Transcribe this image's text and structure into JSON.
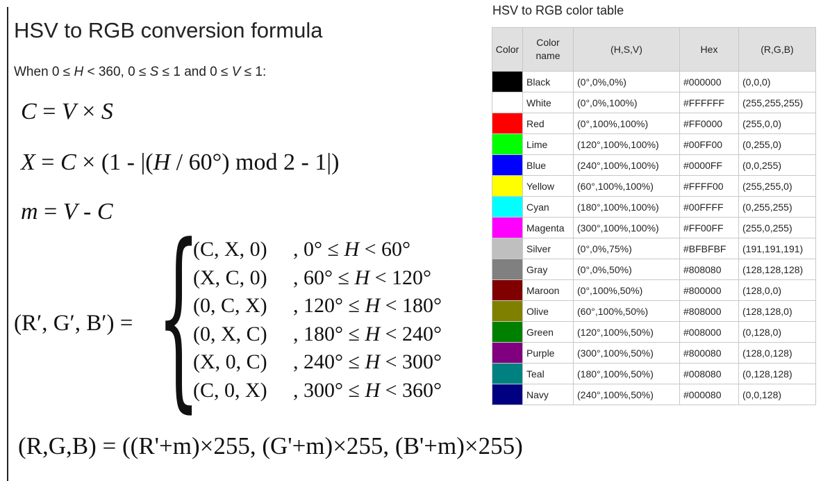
{
  "formula": {
    "title": "HSV to RGB conversion formula",
    "condition": {
      "prefix": "When 0 ≤ ",
      "h": "H",
      "mid1": " < 360, 0 ≤ ",
      "s": "S",
      "mid2": " ≤ 1 and 0 ≤ ",
      "v": "V",
      "suffix": " ≤ 1:"
    },
    "eq_c": {
      "lhs": "C",
      "op": " = ",
      "a": "V",
      "times": " × ",
      "b": "S"
    },
    "eq_x": {
      "lhs": "X",
      "op": " = ",
      "c": "C",
      "rest1": " × (1 - |(",
      "h": "H",
      "rest2": " / 60°) mod 2 - 1|)"
    },
    "eq_m": {
      "lhs": "m",
      "op": " = ",
      "v": "V",
      "minus": " - ",
      "c": "C"
    },
    "piecewise_lhs": "(R′, G′, B′) = ",
    "piecewise_brace": "{",
    "cases": [
      {
        "tuple": "(C, X, 0)",
        "range_pre": ", 0° ≤ ",
        "h": "H",
        "range_post": " < 60°"
      },
      {
        "tuple": "(X, C, 0)",
        "range_pre": ", 60° ≤ ",
        "h": "H",
        "range_post": " < 120°"
      },
      {
        "tuple": "(0, C, X)",
        "range_pre": ", 120° ≤ ",
        "h": "H",
        "range_post": " < 180°"
      },
      {
        "tuple": "(0, X, C)",
        "range_pre": ", 180° ≤ ",
        "h": "H",
        "range_post": " < 240°"
      },
      {
        "tuple": "(X, 0, C)",
        "range_pre": ", 240° ≤ ",
        "h": "H",
        "range_post": " < 300°"
      },
      {
        "tuple": "(C, 0, X)",
        "range_pre": ", 300° ≤ ",
        "h": "H",
        "range_post": " < 360°"
      }
    ],
    "eq_final": "(R,G,B) = ((R'+m)×255, (G'+m)×255, (B'+m)×255)"
  },
  "table": {
    "title": "HSV to RGB color table",
    "headers": {
      "color": "Color",
      "name_line1": "Color",
      "name_line2": "name",
      "hsv": "(H,S,V)",
      "hex": "Hex",
      "rgb": "(R,G,B)"
    },
    "rows": [
      {
        "swatch": "#000000",
        "name": "Black",
        "hsv": "(0°,0%,0%)",
        "hex": "#000000",
        "rgb": "(0,0,0)"
      },
      {
        "swatch": "#FFFFFF",
        "name": "White",
        "hsv": "(0°,0%,100%)",
        "hex": "#FFFFFF",
        "rgb": "(255,255,255)"
      },
      {
        "swatch": "#FF0000",
        "name": "Red",
        "hsv": "(0°,100%,100%)",
        "hex": "#FF0000",
        "rgb": "(255,0,0)"
      },
      {
        "swatch": "#00FF00",
        "name": "Lime",
        "hsv": "(120°,100%,100%)",
        "hex": "#00FF00",
        "rgb": "(0,255,0)"
      },
      {
        "swatch": "#0000FF",
        "name": "Blue",
        "hsv": "(240°,100%,100%)",
        "hex": "#0000FF",
        "rgb": "(0,0,255)"
      },
      {
        "swatch": "#FFFF00",
        "name": "Yellow",
        "hsv": "(60°,100%,100%)",
        "hex": "#FFFF00",
        "rgb": "(255,255,0)"
      },
      {
        "swatch": "#00FFFF",
        "name": "Cyan",
        "hsv": "(180°,100%,100%)",
        "hex": "#00FFFF",
        "rgb": "(0,255,255)"
      },
      {
        "swatch": "#FF00FF",
        "name": "Magenta",
        "hsv": "(300°,100%,100%)",
        "hex": "#FF00FF",
        "rgb": "(255,0,255)"
      },
      {
        "swatch": "#BFBFBF",
        "name": "Silver",
        "hsv": "(0°,0%,75%)",
        "hex": "#BFBFBF",
        "rgb": "(191,191,191)"
      },
      {
        "swatch": "#808080",
        "name": "Gray",
        "hsv": "(0°,0%,50%)",
        "hex": "#808080",
        "rgb": "(128,128,128)"
      },
      {
        "swatch": "#800000",
        "name": "Maroon",
        "hsv": "(0°,100%,50%)",
        "hex": "#800000",
        "rgb": "(128,0,0)"
      },
      {
        "swatch": "#808000",
        "name": "Olive",
        "hsv": "(60°,100%,50%)",
        "hex": "#808000",
        "rgb": "(128,128,0)"
      },
      {
        "swatch": "#008000",
        "name": "Green",
        "hsv": "(120°,100%,50%)",
        "hex": "#008000",
        "rgb": "(0,128,0)"
      },
      {
        "swatch": "#800080",
        "name": "Purple",
        "hsv": "(300°,100%,50%)",
        "hex": "#800080",
        "rgb": "(128,0,128)"
      },
      {
        "swatch": "#008080",
        "name": "Teal",
        "hsv": "(180°,100%,50%)",
        "hex": "#008080",
        "rgb": "(0,128,128)"
      },
      {
        "swatch": "#000080",
        "name": "Navy",
        "hsv": "(240°,100%,50%)",
        "hex": "#000080",
        "rgb": "(0,0,128)"
      }
    ]
  },
  "colors": {
    "text": "#222222",
    "header_bg": "#E0E0E0",
    "table_border": "#C8C8C8",
    "rule": "#222222"
  }
}
